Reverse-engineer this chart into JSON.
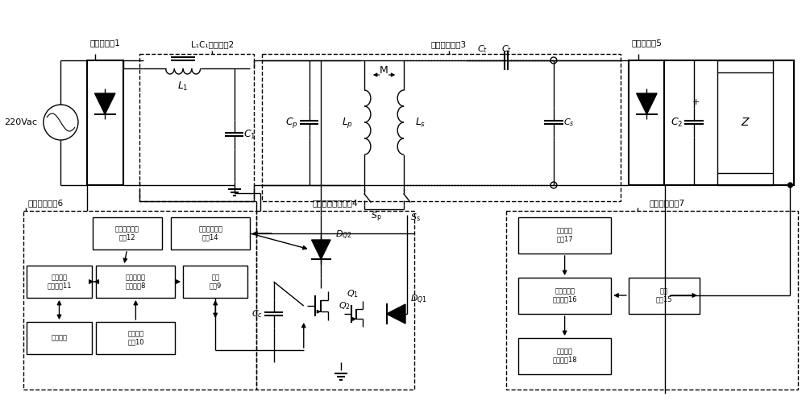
{
  "bg_color": "#ffffff",
  "labels": {
    "source": "220Vac",
    "bridge1": "第一整流桑1",
    "filter2": "L₁C₁滤波电路2",
    "resonant3": "谐振耦合电路3",
    "bridge2": "第二整流桑5",
    "pulldown4": "下拉辅助开关支路4",
    "primary6": "原边控制电路6",
    "secondary7": "副边控制电路7",
    "L1": "$L_1$",
    "C1": "$C_1$",
    "Cp": "$C_p$",
    "Lp": "$L_p$",
    "Ls": "$L_s$",
    "Ct": "$C_t$",
    "Cs": "$C_s$",
    "M": "M",
    "Sp": "$S_{\\rm p}$",
    "Ss": "$S_{\\rm s}$",
    "C2": "$C_2$",
    "Z": "$Z$",
    "DQ2": "$D_{Q2}$",
    "Q2": "$Q_2$",
    "Q1": "$Q_1$",
    "DQ1": "$D_{Q1}$",
    "Cc": "$C_c$",
    "box12": "第一电压检测\n电路12",
    "box14": "第二电压检测\n电路14",
    "box11": "第一无线\n通信电路11",
    "box8": "第一单片机\n控制电路8",
    "box9": "驱动\n电路9",
    "box13": "遥控器３",
    "box10": "第一辅助\n电渀10",
    "box17": "第二辅助\n电怗17",
    "box16": "第二单片机\n控制电路16",
    "box15": "采样\n电路15",
    "box18": "第二无线\n通信电路18"
  }
}
